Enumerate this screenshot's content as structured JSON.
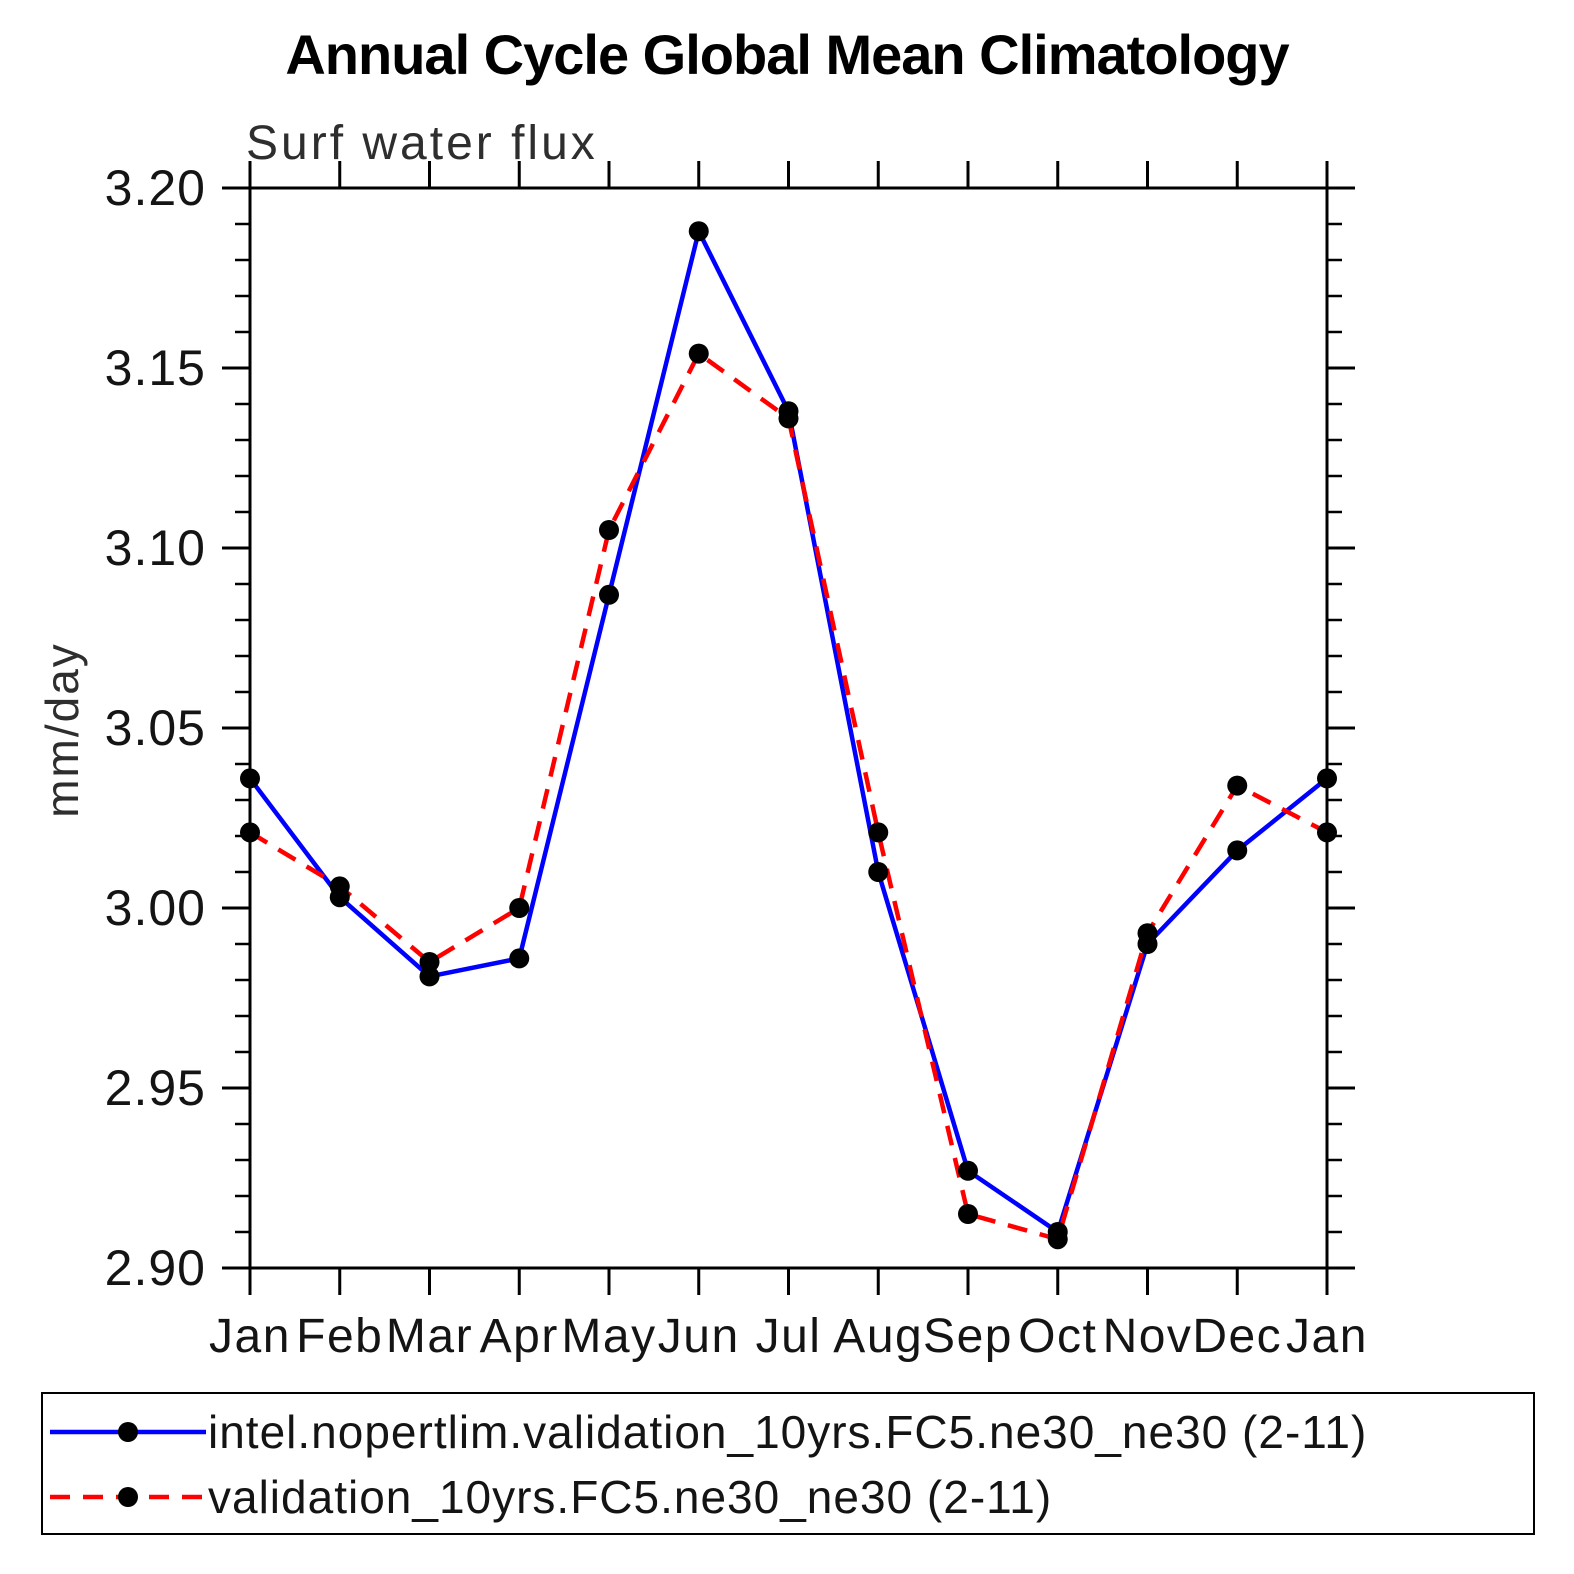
{
  "title": "Annual Cycle Global Mean Climatology",
  "chart_data": {
    "type": "line",
    "title": "Annual Cycle Global Mean Climatology",
    "subtitle": "Surf water flux",
    "ylabel": "mm/day",
    "xlabel": "",
    "categories": [
      "Jan",
      "Feb",
      "Mar",
      "Apr",
      "May",
      "Jun",
      "Jul",
      "Aug",
      "Sep",
      "Oct",
      "Nov",
      "Dec",
      "Jan"
    ],
    "ylim": [
      2.9,
      3.2
    ],
    "ytick_step": 0.05,
    "yminor_step": 0.01,
    "ytick_labels": [
      "3.20",
      "3.15",
      "3.10",
      "3.05",
      "3.00",
      "2.95",
      "2.90"
    ],
    "grid": false,
    "legend": {
      "position": "bottom",
      "boxed": true
    },
    "marker": "filled-circle",
    "marker_color": "#000000",
    "series": [
      {
        "name": "intel.nopertlim.validation_10yrs.FC5.ne30_ne30 (2-11)",
        "color": "#0000ff",
        "line_style": "solid",
        "dash": "none",
        "values": [
          3.036,
          3.003,
          2.981,
          2.986,
          3.087,
          3.188,
          3.138,
          3.01,
          2.927,
          2.91,
          2.99,
          3.016,
          3.036
        ]
      },
      {
        "name": "validation_10yrs.FC5.ne30_ne30 (2-11)",
        "color": "#ff0000",
        "line_style": "dashed",
        "dash": "20 13",
        "values": [
          3.021,
          3.006,
          2.985,
          3.0,
          3.105,
          3.154,
          3.136,
          3.021,
          2.915,
          2.908,
          2.993,
          3.034,
          3.021
        ]
      }
    ]
  }
}
